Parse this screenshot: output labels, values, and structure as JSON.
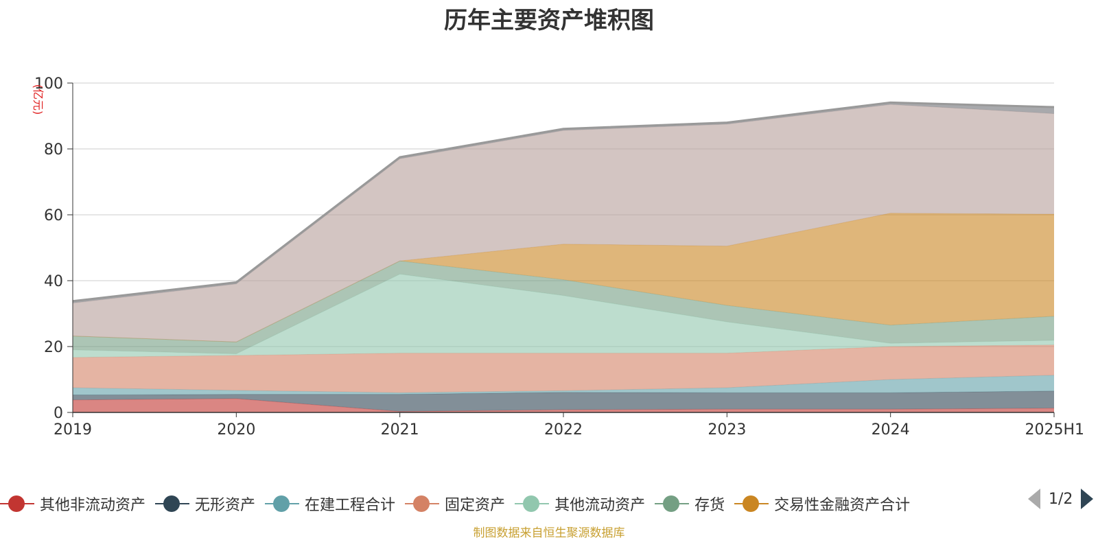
{
  "chart_data": {
    "type": "area",
    "stacked": true,
    "title": "历年主要资产堆积图",
    "unit_label": "(亿元)",
    "x": [
      "2019",
      "2020",
      "2021",
      "2022",
      "2023",
      "2024",
      "2025H1"
    ],
    "ylim": [
      0,
      100
    ],
    "yticks": [
      0,
      20,
      40,
      60,
      80,
      100
    ],
    "grid": true,
    "legend_position": "bottom",
    "series": [
      {
        "name": "其他非流动资产",
        "color": "#c23531",
        "values": [
          3.8,
          4.2,
          0.3,
          0.8,
          1.0,
          1.0,
          1.3
        ]
      },
      {
        "name": "无形资产",
        "color": "#2f4554",
        "values": [
          1.5,
          1.3,
          5.2,
          5.3,
          5.0,
          5.0,
          5.2
        ]
      },
      {
        "name": "在建工程合计",
        "color": "#61a0a8",
        "values": [
          2.2,
          1.2,
          0.5,
          0.5,
          1.5,
          4.0,
          4.8
        ]
      },
      {
        "name": "固定资产",
        "color": "#d48265",
        "values": [
          9.2,
          10.6,
          12.0,
          11.4,
          10.5,
          10.0,
          9.2
        ]
      },
      {
        "name": "其他流动资产",
        "color": "#91c7ae",
        "values": [
          2.3,
          0.5,
          24.0,
          17.5,
          9.5,
          1.0,
          1.4
        ]
      },
      {
        "name": "存货",
        "color": "#749f83",
        "values": [
          4.2,
          3.6,
          4.0,
          4.8,
          5.0,
          5.5,
          7.3
        ]
      },
      {
        "name": "交易性金融资产合计",
        "color": "#ca8622",
        "values": [
          0,
          0,
          0,
          10.8,
          18.0,
          34.0,
          31.0
        ]
      },
      {
        "name": "",
        "color": "#b59e9a",
        "values": [
          10.0,
          17.6,
          31.0,
          34.5,
          37.0,
          33.0,
          30.5
        ]
      },
      {
        "name": "",
        "color": "#6e7074",
        "values": [
          0.6,
          0.5,
          0.5,
          0.5,
          0.5,
          0.6,
          2.0
        ]
      }
    ]
  },
  "legend": {
    "page_text": "1/2"
  },
  "footer": {
    "note": "制图数据来自恒生聚源数据库"
  }
}
